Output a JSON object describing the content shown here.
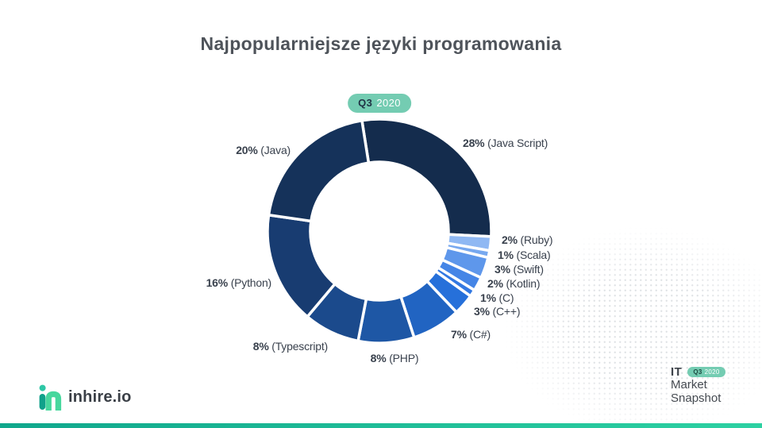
{
  "title": "Najpopularniejsze języki programowania",
  "period_badge": {
    "quarter": "Q3",
    "year": "2020"
  },
  "chart_data": {
    "type": "pie",
    "variant": "donut",
    "title": "Najpopularniejsze języki programowania",
    "period": "Q3 2020",
    "unit": "%",
    "direction": "clockwise",
    "start_angle_deg": -9,
    "label_format": "{value}% ({name})",
    "slices": [
      {
        "name": "Java Script",
        "value_pct": 28,
        "color": "#142c4d"
      },
      {
        "name": "Ruby",
        "value_pct": 2,
        "color": "#8fb8f3"
      },
      {
        "name": "Scala",
        "value_pct": 1,
        "color": "#77a8ef"
      },
      {
        "name": "Swift",
        "value_pct": 3,
        "color": "#5e97eb"
      },
      {
        "name": "Kotlin",
        "value_pct": 2,
        "color": "#4585e6"
      },
      {
        "name": "C",
        "value_pct": 1,
        "color": "#3278e2"
      },
      {
        "name": "C++",
        "value_pct": 3,
        "color": "#2670da"
      },
      {
        "name": "C#",
        "value_pct": 7,
        "color": "#2164c2"
      },
      {
        "name": "PHP",
        "value_pct": 8,
        "color": "#1e57a5"
      },
      {
        "name": "Typescript",
        "value_pct": 8,
        "color": "#1b4a8c"
      },
      {
        "name": "Python",
        "value_pct": 16,
        "color": "#183c71"
      },
      {
        "name": "Java",
        "value_pct": 20,
        "color": "#15325a"
      }
    ]
  },
  "branding": {
    "logo_text": "inhire.io"
  },
  "footer_brand": {
    "line1": "IT",
    "line2": "Market",
    "line3": "Snapshot",
    "badge_quarter": "Q3",
    "badge_year": "2020"
  },
  "colors": {
    "accent_teal": "#74ccb2",
    "accent_bar_start": "#10a78c",
    "accent_bar_end": "#2dd1a2",
    "title_text": "#4e535a",
    "label_text": "#39414d"
  }
}
